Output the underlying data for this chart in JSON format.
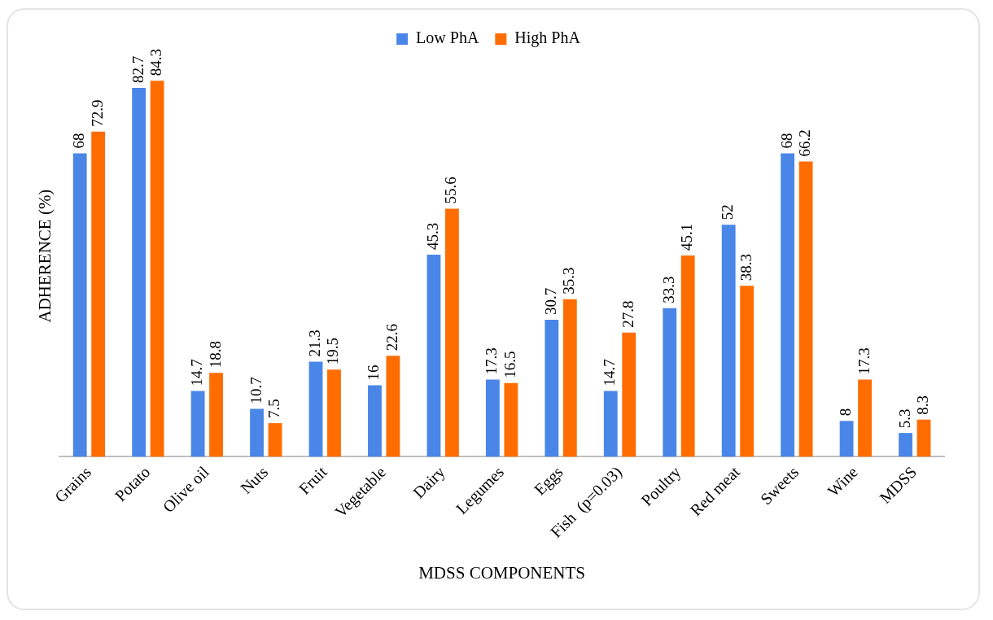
{
  "chart_data": {
    "type": "bar",
    "xlabel": "MDSS COMPONENTS",
    "ylabel": "ADHERENCE (%)",
    "categories": [
      "Grains",
      "Potato",
      "Olive oil",
      "Nuts",
      "Fruit",
      "Vegetable",
      "Dairy",
      "Legumes",
      "Eggs",
      "Fish  (p=0.03)",
      "Poultry",
      "Red meat",
      "Sweets",
      "Wine",
      "MDSS"
    ],
    "series": [
      {
        "name": "Low PhA",
        "color": "#4a86e8",
        "values": [
          68,
          82.7,
          14.7,
          10.7,
          21.3,
          16,
          45.3,
          17.3,
          30.7,
          14.7,
          33.3,
          52,
          68,
          8,
          5.3
        ]
      },
      {
        "name": "High PhA",
        "color": "#ff6d01",
        "values": [
          72.9,
          84.3,
          18.8,
          7.5,
          19.5,
          22.6,
          55.6,
          16.5,
          35.3,
          27.8,
          45.1,
          38.3,
          66.2,
          17.3,
          8.3
        ]
      }
    ],
    "tick_labels": "x",
    "data_labels": true,
    "legend": "top",
    "grid": false
  }
}
